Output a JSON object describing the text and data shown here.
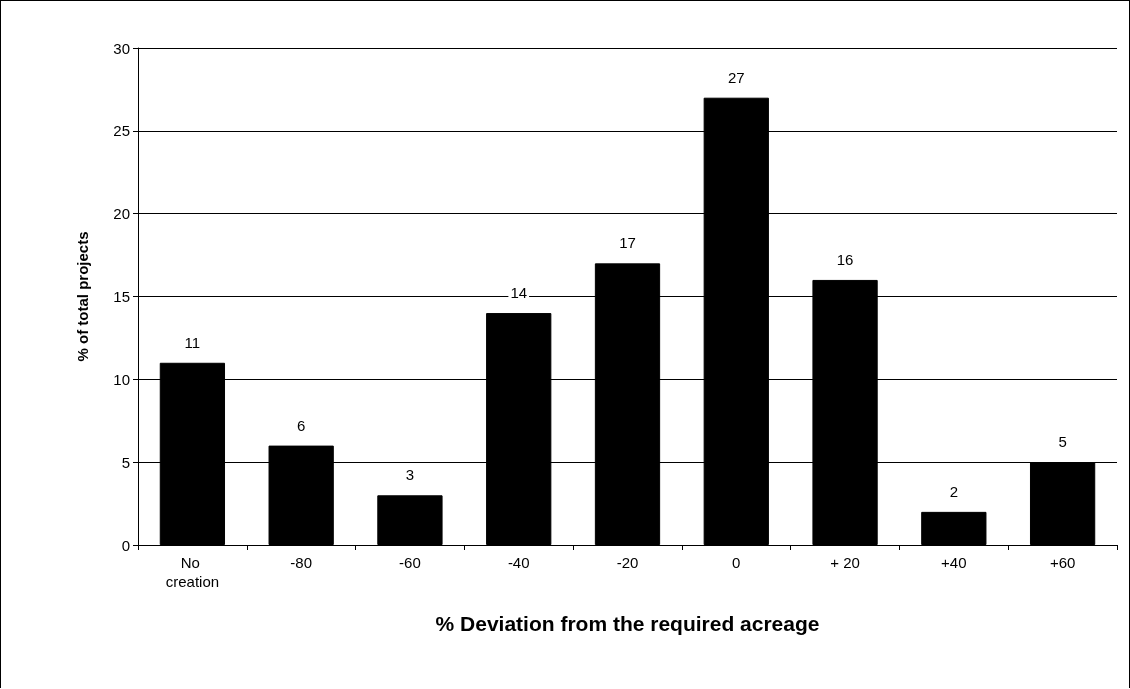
{
  "chart_data": {
    "type": "bar",
    "xlabel": "% Deviation from the required acreage",
    "ylabel": "% of total projects",
    "categories": [
      "No creation",
      "-80",
      "-60",
      "-40",
      "-20",
      "0",
      "+ 20",
      "+40",
      "+60"
    ],
    "values": [
      11,
      6,
      3,
      14,
      17,
      27,
      16,
      2,
      5
    ],
    "color": "#000000",
    "ylim": [
      0,
      30
    ],
    "yticks": [
      0,
      5,
      10,
      15,
      20,
      25,
      30
    ],
    "grid": "y",
    "data_labels": true
  }
}
